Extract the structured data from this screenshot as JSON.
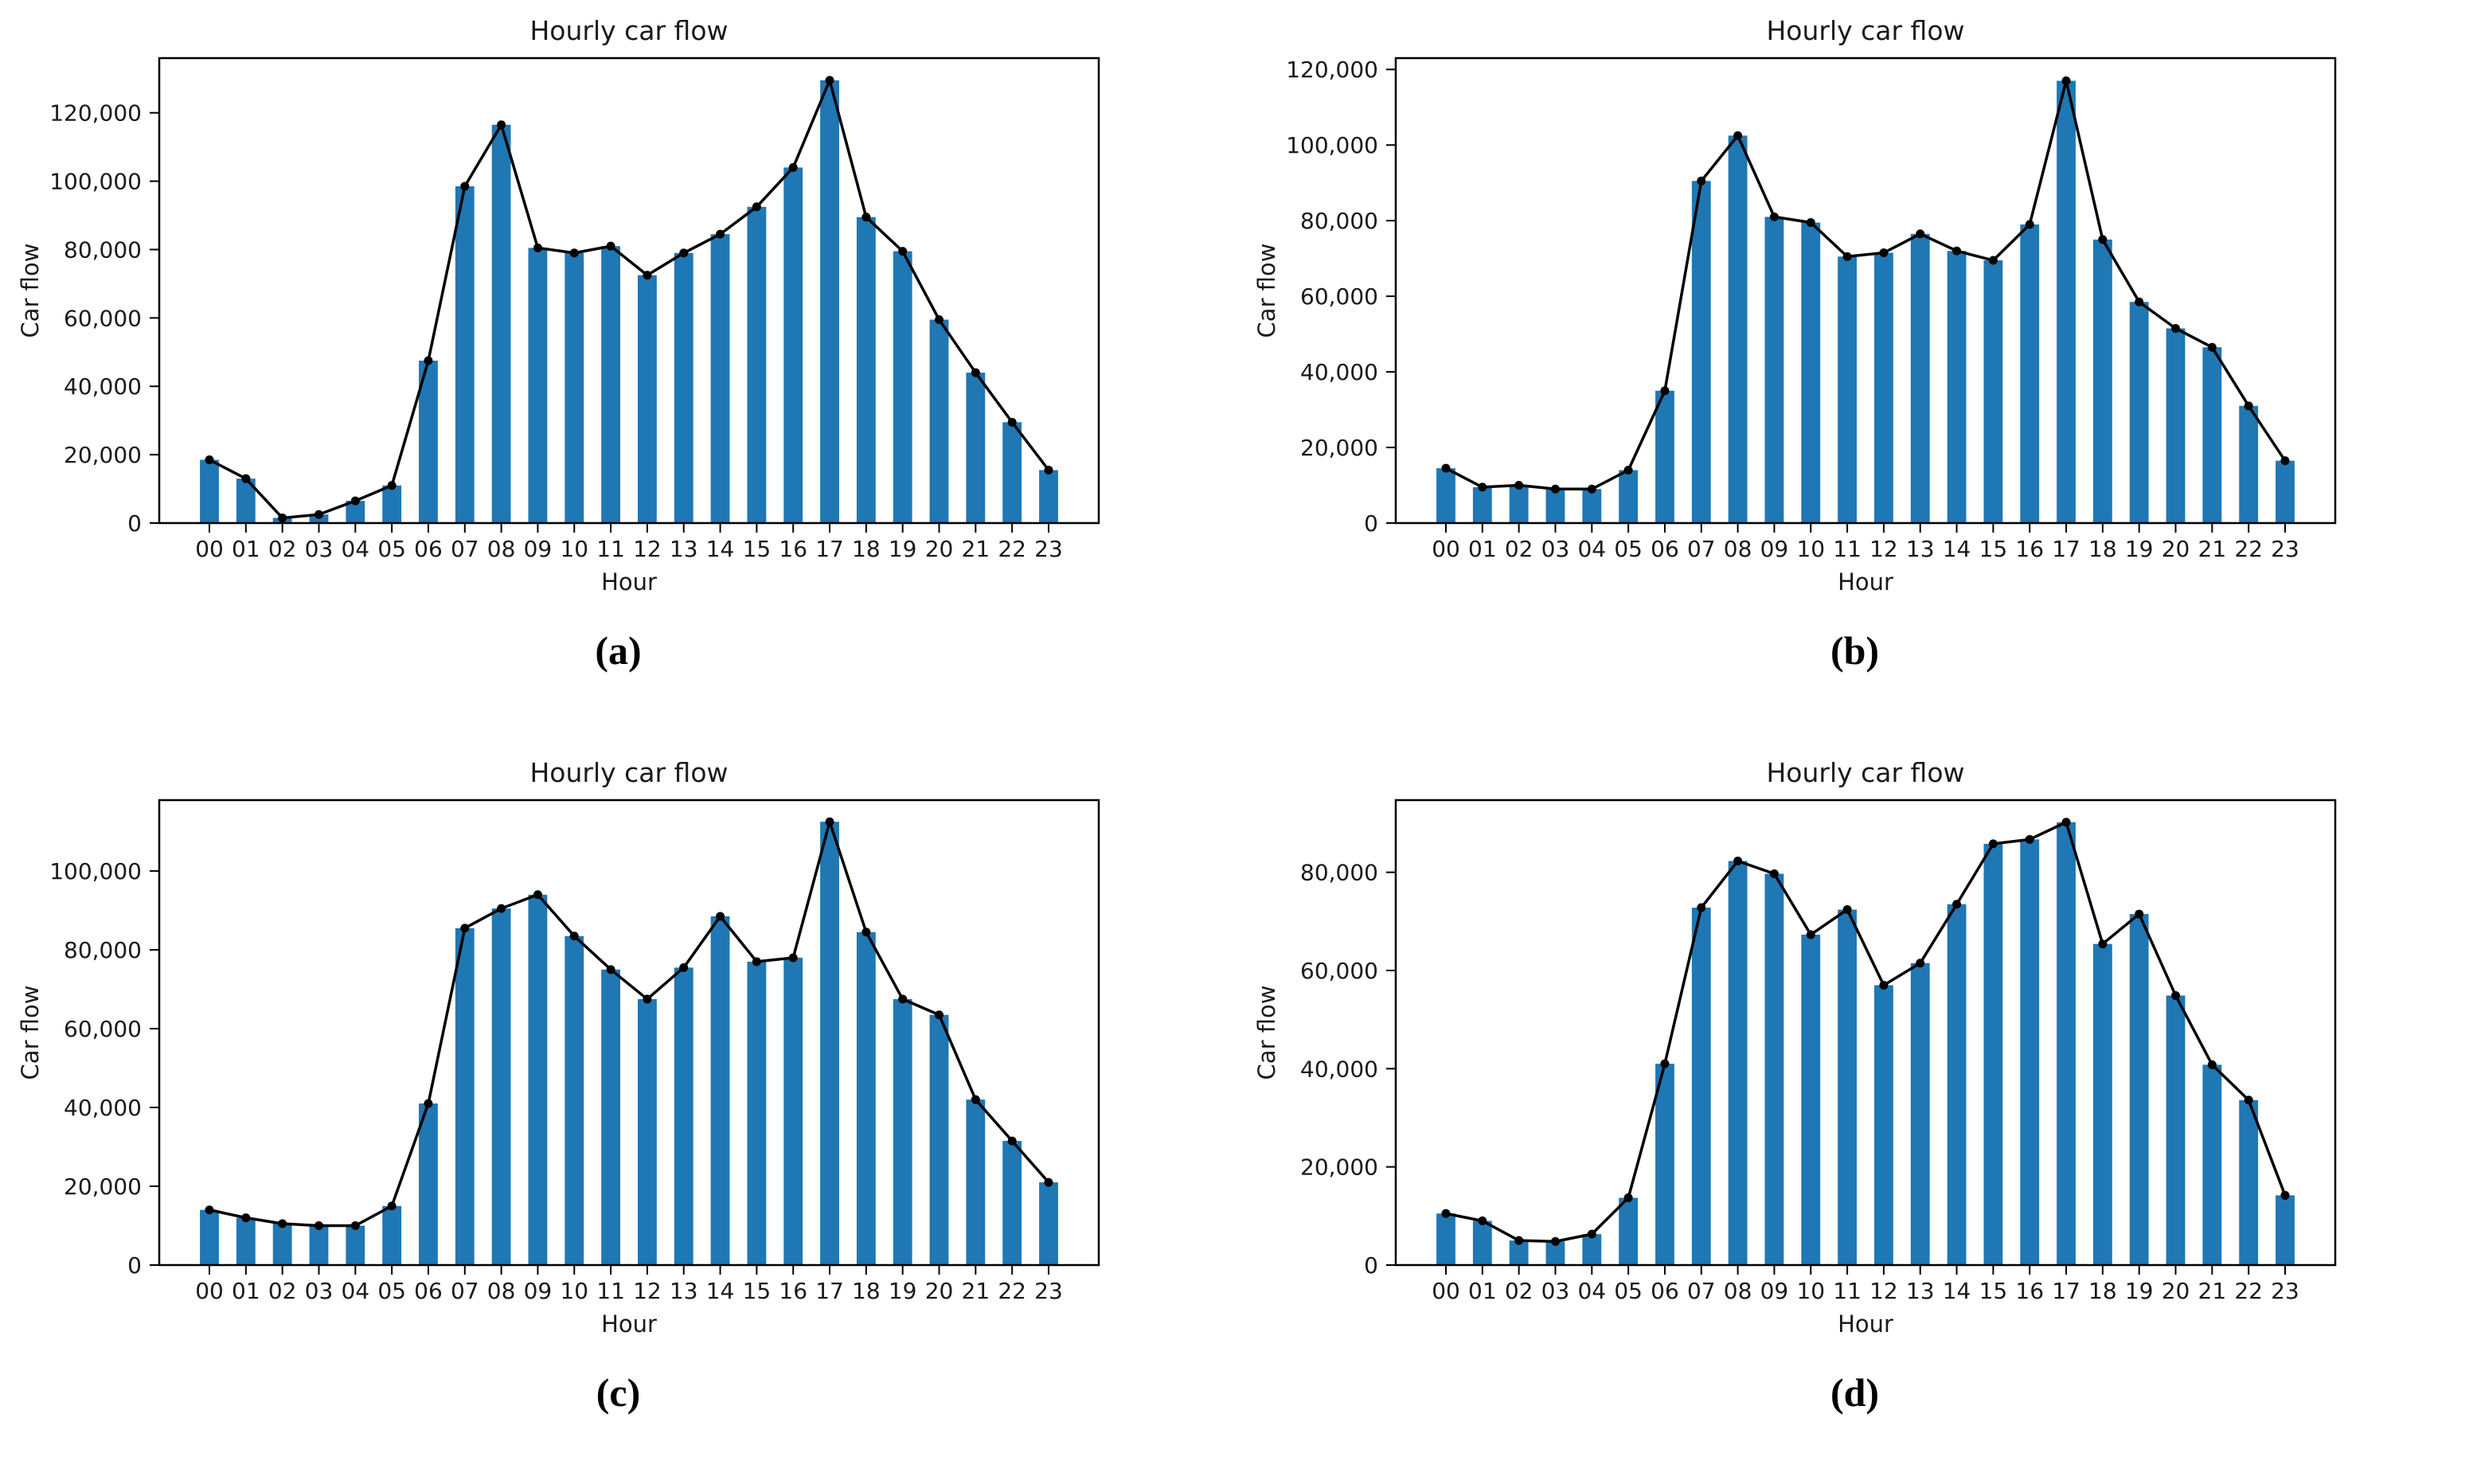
{
  "figure": {
    "background": "#ffffff",
    "bar_color": "#1f77b4",
    "line_color": "#000000",
    "axis_color": "#000000",
    "text_color": "#1a1a1a"
  },
  "chart_data": [
    {
      "id": "a",
      "caption": "(a)",
      "type": "bar",
      "overlay": "line",
      "title": "Hourly car flow",
      "xlabel": "Hour",
      "ylabel": "Car flow",
      "categories": [
        "00",
        "01",
        "02",
        "03",
        "04",
        "05",
        "06",
        "07",
        "08",
        "09",
        "10",
        "11",
        "12",
        "13",
        "14",
        "15",
        "16",
        "17",
        "18",
        "19",
        "20",
        "21",
        "22",
        "23"
      ],
      "values": [
        18500,
        13000,
        1500,
        2500,
        6500,
        11000,
        47500,
        98500,
        116500,
        80500,
        79000,
        81000,
        72500,
        79000,
        84500,
        92500,
        104000,
        129500,
        89500,
        79500,
        59500,
        44000,
        29500,
        15500
      ],
      "yticks": [
        0,
        20000,
        40000,
        60000,
        80000,
        100000,
        120000
      ],
      "ylim": [
        0,
        136000
      ],
      "grid": false,
      "legend": "none"
    },
    {
      "id": "b",
      "caption": "(b)",
      "type": "bar",
      "overlay": "line",
      "title": "Hourly car flow",
      "xlabel": "Hour",
      "ylabel": "Car flow",
      "categories": [
        "00",
        "01",
        "02",
        "03",
        "04",
        "05",
        "06",
        "07",
        "08",
        "09",
        "10",
        "11",
        "12",
        "13",
        "14",
        "15",
        "16",
        "17",
        "18",
        "19",
        "20",
        "21",
        "22",
        "23"
      ],
      "values": [
        14500,
        9500,
        10000,
        9000,
        9000,
        14000,
        35000,
        90500,
        102500,
        81000,
        79500,
        70500,
        71500,
        76500,
        72000,
        69500,
        79000,
        117000,
        75000,
        58500,
        51500,
        46500,
        31000,
        16500
      ],
      "yticks": [
        0,
        20000,
        40000,
        60000,
        80000,
        100000,
        120000
      ],
      "ylim": [
        0,
        123000
      ],
      "grid": false,
      "legend": "none"
    },
    {
      "id": "c",
      "caption": "(c)",
      "type": "bar",
      "overlay": "line",
      "title": "Hourly car flow",
      "xlabel": "Hour",
      "ylabel": "Car flow",
      "categories": [
        "00",
        "01",
        "02",
        "03",
        "04",
        "05",
        "06",
        "07",
        "08",
        "09",
        "10",
        "11",
        "12",
        "13",
        "14",
        "15",
        "16",
        "17",
        "18",
        "19",
        "20",
        "21",
        "22",
        "23"
      ],
      "values": [
        14000,
        12000,
        10500,
        10000,
        10000,
        15000,
        41000,
        85500,
        90500,
        94000,
        83500,
        75000,
        67500,
        75500,
        88500,
        77000,
        78000,
        112500,
        84500,
        67500,
        63500,
        42000,
        31500,
        21000
      ],
      "yticks": [
        0,
        20000,
        40000,
        60000,
        80000,
        100000
      ],
      "ylim": [
        0,
        118000
      ],
      "grid": false,
      "legend": "none"
    },
    {
      "id": "d",
      "caption": "(d)",
      "type": "bar",
      "overlay": "line",
      "title": "Hourly car flow",
      "xlabel": "Hour",
      "ylabel": "Car flow",
      "categories": [
        "00",
        "01",
        "02",
        "03",
        "04",
        "05",
        "06",
        "07",
        "08",
        "09",
        "10",
        "11",
        "12",
        "13",
        "14",
        "15",
        "16",
        "17",
        "18",
        "19",
        "20",
        "21",
        "22",
        "23"
      ],
      "values": [
        10500,
        9000,
        5000,
        4800,
        6300,
        13700,
        41000,
        72800,
        82300,
        79700,
        67300,
        72400,
        57000,
        61500,
        73500,
        85800,
        86700,
        90200,
        65400,
        71500,
        54900,
        40800,
        33600,
        14200
      ],
      "yticks": [
        0,
        20000,
        40000,
        60000,
        80000
      ],
      "ylim": [
        0,
        94700
      ],
      "grid": false,
      "legend": "none"
    }
  ]
}
